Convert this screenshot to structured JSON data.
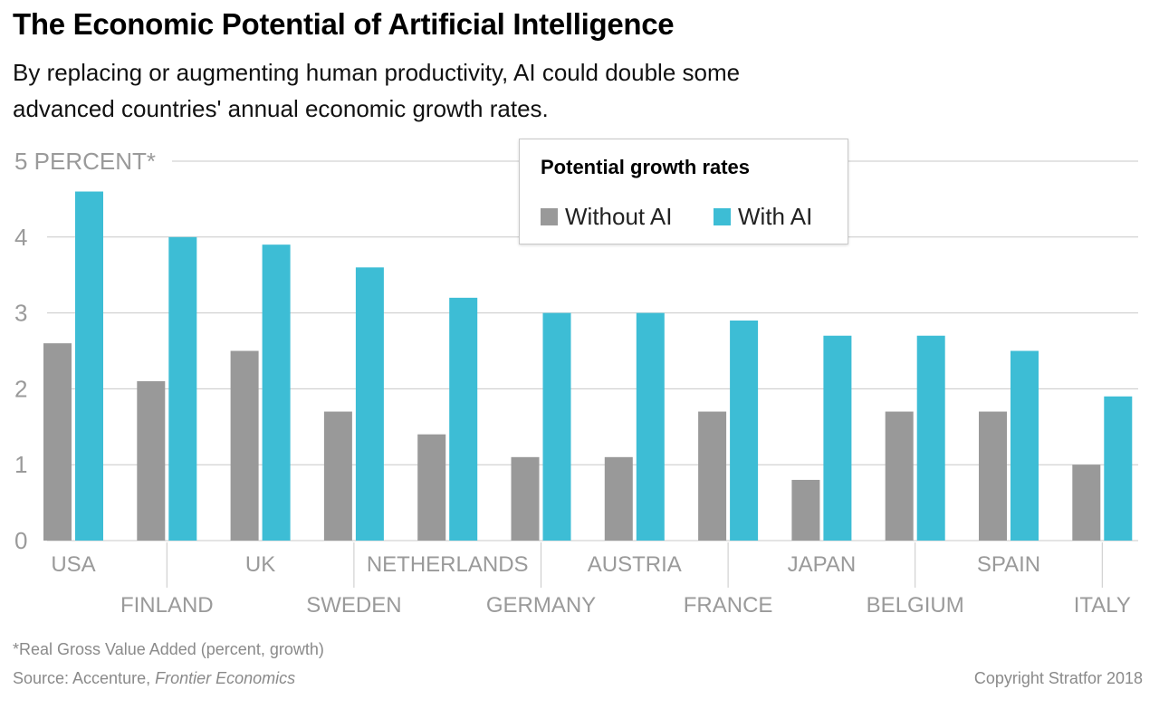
{
  "title": "The Economic Potential of Artificial Intelligence",
  "subtitle": "By replacing or augmenting human productivity, AI could double some advanced countries' annual economic growth rates.",
  "footnote": "*Real Gross Value Added (percent, growth)",
  "source_prefix": "Source: Accenture, ",
  "source_italic": "Frontier Economics",
  "copyright": "Copyright Stratfor 2018",
  "colors": {
    "without_ai": "#999999",
    "with_ai": "#3dbdd5",
    "grid": "#c8c8c8",
    "axis_text": "#9a9a9a"
  },
  "legend": {
    "title": "Potential growth rates",
    "items": [
      "Without AI",
      "With AI"
    ],
    "placement": "top-center"
  },
  "chart_data": {
    "type": "bar",
    "categories": [
      "USA",
      "FINLAND",
      "UK",
      "SWEDEN",
      "NETHERLANDS",
      "GERMANY",
      "AUSTRIA",
      "FRANCE",
      "JAPAN",
      "BELGIUM",
      "SPAIN",
      "ITALY"
    ],
    "series": [
      {
        "name": "Without AI",
        "values": [
          2.6,
          2.1,
          2.5,
          1.7,
          1.4,
          1.1,
          1.1,
          1.7,
          0.8,
          1.7,
          1.7,
          1.0
        ]
      },
      {
        "name": "With AI",
        "values": [
          4.6,
          4.0,
          3.9,
          3.6,
          3.2,
          3.0,
          3.0,
          2.9,
          2.7,
          2.7,
          2.5,
          1.9
        ]
      }
    ],
    "yticks": [
      "0",
      "1",
      "2",
      "3",
      "4",
      "5 PERCENT*"
    ],
    "ylim": [
      0,
      5
    ],
    "grid": true
  }
}
